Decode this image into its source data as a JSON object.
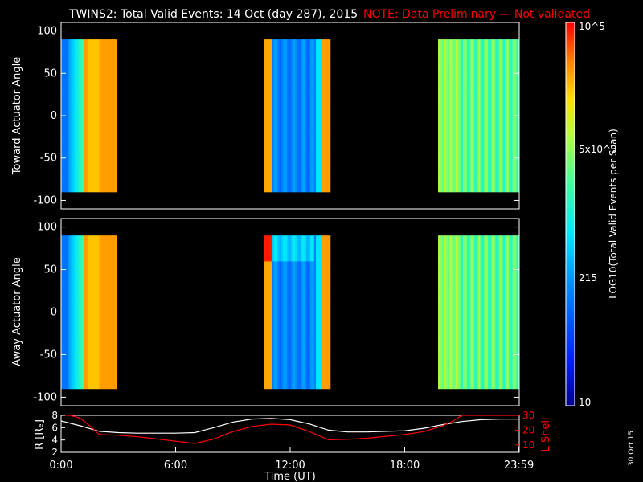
{
  "header": {
    "title": "TWINS2: Total Valid Events: 14 Oct (day 287), 2015",
    "note": "NOTE: Data Preliminary — Not validated"
  },
  "stamp": "30 Oct 15",
  "colors": {
    "background": "#000000",
    "axis": "#ffffff",
    "note": "#ff0000",
    "r_line": "#ffffff",
    "l_line": "#ff0000"
  },
  "chart_data": [
    {
      "type": "heatmap",
      "panel": "toward",
      "ylabel": "Toward Actuator Angle",
      "xlim": [
        0,
        24
      ],
      "ylim": [
        -110,
        110
      ],
      "yticks": [
        -100,
        -50,
        0,
        50,
        100
      ],
      "angle_range": [
        -90,
        90
      ],
      "data_intervals_hours": [
        [
          0.0,
          2.9
        ],
        [
          10.65,
          14.1
        ],
        [
          19.75,
          23.99
        ]
      ],
      "colorscale": "log",
      "colorscale_range": [
        10,
        100000
      ]
    },
    {
      "type": "heatmap",
      "panel": "away",
      "ylabel": "Away Actuator Angle",
      "xlim": [
        0,
        24
      ],
      "ylim": [
        -110,
        110
      ],
      "yticks": [
        -100,
        -50,
        0,
        50,
        100
      ],
      "angle_range": [
        -90,
        90
      ],
      "data_intervals_hours": [
        [
          0.0,
          2.9
        ],
        [
          10.65,
          14.1
        ],
        [
          19.75,
          23.99
        ]
      ],
      "colorscale": "log",
      "colorscale_range": [
        10,
        100000
      ]
    },
    {
      "type": "line",
      "panel": "orbit",
      "xlabel": "Time (UT)",
      "xticks": [
        "0:00",
        "6:00",
        "12:00",
        "18:00",
        "23:59"
      ],
      "xtick_hours": [
        0,
        6,
        12,
        18,
        23.983
      ],
      "y_left": {
        "label": "R [Rₑ]",
        "ylim": [
          2,
          8
        ],
        "yticks": [
          2,
          4,
          6,
          8
        ]
      },
      "y_right": {
        "label": "L Shell",
        "ylim": [
          5,
          30
        ],
        "yticks": [
          10,
          20,
          30
        ]
      },
      "series": [
        {
          "axis": "left",
          "x": [
            0,
            1,
            2,
            3,
            4,
            5,
            6,
            7,
            8,
            9,
            10,
            11,
            12,
            13,
            14,
            15,
            16,
            17,
            18,
            19,
            20,
            21,
            22,
            23,
            24
          ],
          "values": [
            7.1,
            6.3,
            5.4,
            5.2,
            5.1,
            5.1,
            5.1,
            5.2,
            6.0,
            6.9,
            7.4,
            7.5,
            7.3,
            6.6,
            5.6,
            5.3,
            5.3,
            5.4,
            5.5,
            5.9,
            6.5,
            7.0,
            7.3,
            7.4,
            7.4
          ]
        },
        {
          "axis": "right",
          "x": [
            0,
            0.5,
            1.0,
            1.5,
            2.0,
            3,
            4,
            5,
            6,
            7,
            8,
            9,
            10,
            11,
            12,
            13,
            14,
            15,
            16,
            17,
            18,
            19,
            20,
            20.5,
            21,
            21.5,
            22,
            23,
            24
          ],
          "values": [
            31,
            30,
            28,
            23,
            17,
            16.5,
            15.5,
            14,
            12.5,
            11,
            14,
            19,
            22.5,
            24,
            23.5,
            19,
            13.5,
            13.8,
            14.5,
            15.8,
            17,
            19,
            23,
            26,
            30,
            31,
            31,
            31,
            31
          ]
        }
      ]
    }
  ],
  "colorbar": {
    "label": "LOG10(Total Valid Events per Scan)",
    "tick_labels": [
      "10",
      "215",
      "5x10^3",
      "10^5"
    ]
  }
}
